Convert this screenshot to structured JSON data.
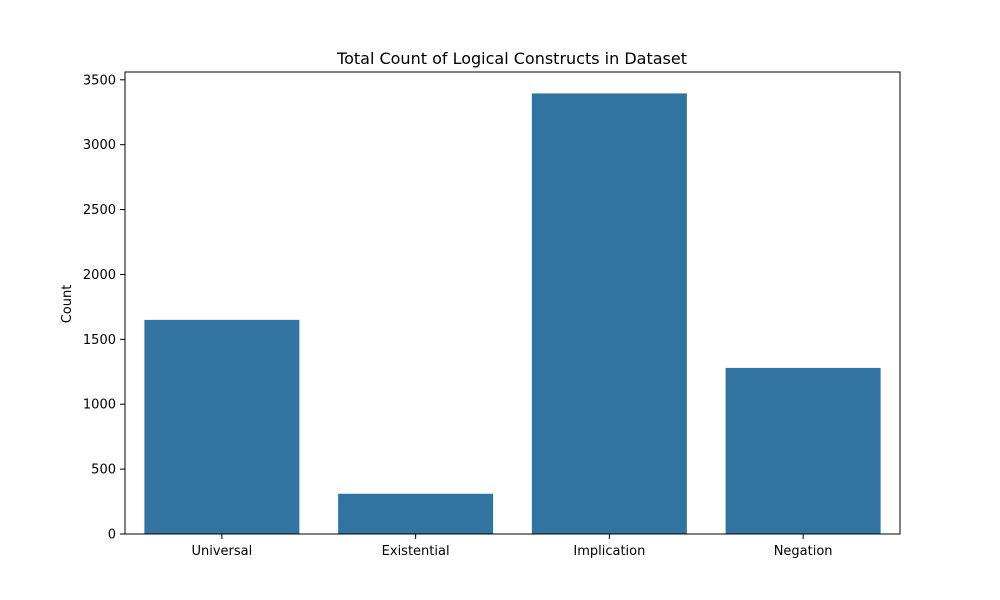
{
  "chart_data": {
    "type": "bar",
    "title": "Total Count of Logical Constructs in Dataset",
    "xlabel": "",
    "ylabel": "Count",
    "categories": [
      "Universal",
      "Existential",
      "Implication",
      "Negation"
    ],
    "values": [
      1650,
      310,
      3395,
      1280
    ],
    "ylim": [
      0,
      3560
    ],
    "yticks": [
      0,
      500,
      1000,
      1500,
      2000,
      2500,
      3000,
      3500
    ],
    "bar_color": "#3274a1",
    "grid": false,
    "legend": "none"
  }
}
